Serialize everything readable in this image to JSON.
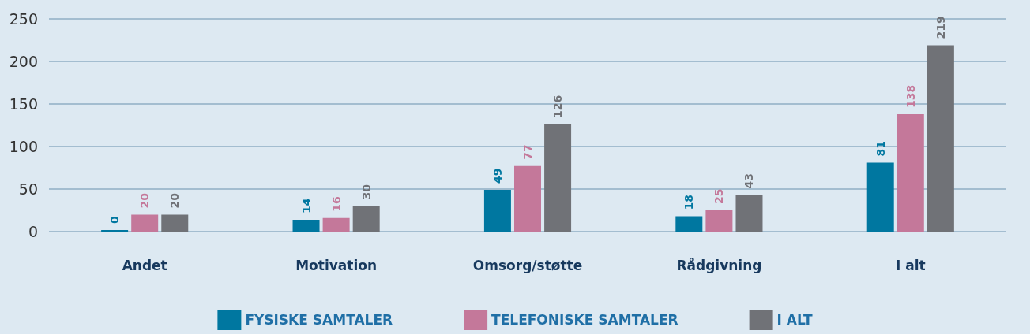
{
  "chart_data": {
    "type": "bar",
    "categories": [
      "Andet",
      "Motivation",
      "Omsorg/støtte",
      "Rådgivning",
      "I alt"
    ],
    "series": [
      {
        "name": "FYSISKE SAMTALER",
        "color": "#0077a0",
        "values": [
          0,
          14,
          49,
          18,
          81
        ]
      },
      {
        "name": "TELEFONISKE SAMTALER",
        "color": "#c4789a",
        "values": [
          20,
          16,
          77,
          25,
          138
        ]
      },
      {
        "name": "I ALT",
        "color": "#707277",
        "values": [
          20,
          30,
          126,
          43,
          219
        ]
      }
    ],
    "ylim": [
      0,
      250
    ],
    "yticks": [
      0,
      50,
      100,
      150,
      200,
      250
    ],
    "grid": "y",
    "legend": "bottom",
    "data_labels": true
  }
}
